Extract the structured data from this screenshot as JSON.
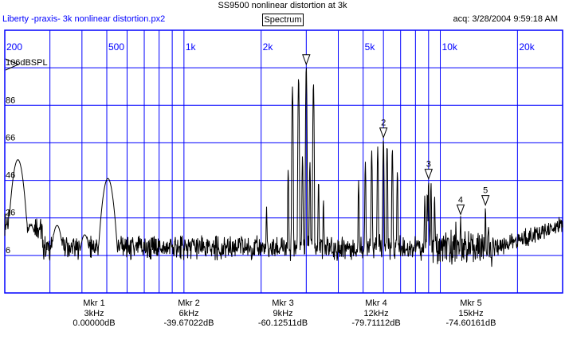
{
  "header": {
    "title": "SS9500 nonlinear distortion at 3k",
    "app_name": "Liberty -praxis-  3k nonlinear distortion.px2",
    "tab_label": "Spectrum",
    "acq_label": "acq: 3/28/2004 9:59:18 AM"
  },
  "colors": {
    "grid": "#0000ff",
    "trace": "#000000",
    "text_blue": "#0000ff",
    "background": "#ffffff"
  },
  "chart_data": {
    "type": "line",
    "xscale": "log",
    "xlim": [
      200,
      30000
    ],
    "ylim": [
      -14,
      126
    ],
    "x_ticks": [
      200,
      500,
      1000,
      2000,
      5000,
      10000,
      20000
    ],
    "x_tick_labels": [
      "200",
      "500",
      "1k",
      "2k",
      "5k",
      "10k",
      "20k"
    ],
    "y_ticks": [
      106,
      86,
      66,
      46,
      26,
      6
    ],
    "y_tick_labels": [
      "106dBSPL",
      "86",
      "66",
      "46",
      "26",
      "6"
    ],
    "grid": true,
    "peaks": [
      {
        "f": 225,
        "level": 57
      },
      {
        "f": 253,
        "level": 22
      },
      {
        "f": 320,
        "level": 22
      },
      {
        "f": 410,
        "level": 17
      },
      {
        "f": 505,
        "level": 47
      },
      {
        "f": 2100,
        "level": 32
      },
      {
        "f": 2550,
        "level": 52
      },
      {
        "f": 2650,
        "level": 96
      },
      {
        "f": 2800,
        "level": 101
      },
      {
        "f": 2900,
        "level": 59
      },
      {
        "f": 3000,
        "level": 107
      },
      {
        "f": 3100,
        "level": 56
      },
      {
        "f": 3200,
        "level": 98
      },
      {
        "f": 3350,
        "level": 46
      },
      {
        "f": 3500,
        "level": 36
      },
      {
        "f": 4800,
        "level": 46
      },
      {
        "f": 5100,
        "level": 56
      },
      {
        "f": 5400,
        "level": 62
      },
      {
        "f": 5700,
        "level": 64
      },
      {
        "f": 6000,
        "level": 68
      },
      {
        "f": 6200,
        "level": 65
      },
      {
        "f": 6500,
        "level": 63
      },
      {
        "f": 6800,
        "level": 51
      },
      {
        "f": 8700,
        "level": 38
      },
      {
        "f": 8900,
        "level": 40
      },
      {
        "f": 9000,
        "level": 46
      },
      {
        "f": 9200,
        "level": 45
      },
      {
        "f": 9500,
        "level": 38
      },
      {
        "f": 11500,
        "level": 24
      },
      {
        "f": 12000,
        "level": 27
      },
      {
        "f": 12400,
        "level": 15
      },
      {
        "f": 15000,
        "level": 32
      },
      {
        "f": 15400,
        "level": 22
      }
    ],
    "markers": [
      {
        "label": "",
        "f": 3000,
        "level": 107
      },
      {
        "label": "2",
        "f": 6000,
        "level": 68
      },
      {
        "label": "3",
        "f": 9000,
        "level": 46
      },
      {
        "label": "4",
        "f": 12000,
        "level": 27
      },
      {
        "label": "5",
        "f": 15000,
        "level": 32
      }
    ],
    "marker_readouts": [
      {
        "name": "Mkr 1",
        "freq": "3kHz",
        "value": "0.00000dB"
      },
      {
        "name": "Mkr 2",
        "freq": "6kHz",
        "value": "-39.67022dB"
      },
      {
        "name": "Mkr 3",
        "freq": "9kHz",
        "value": "-60.12511dB"
      },
      {
        "name": "Mkr 4",
        "freq": "12kHz",
        "value": "-79.71112dB"
      },
      {
        "name": "Mkr 5",
        "freq": "15kHz",
        "value": "-74.60161dB"
      }
    ]
  }
}
